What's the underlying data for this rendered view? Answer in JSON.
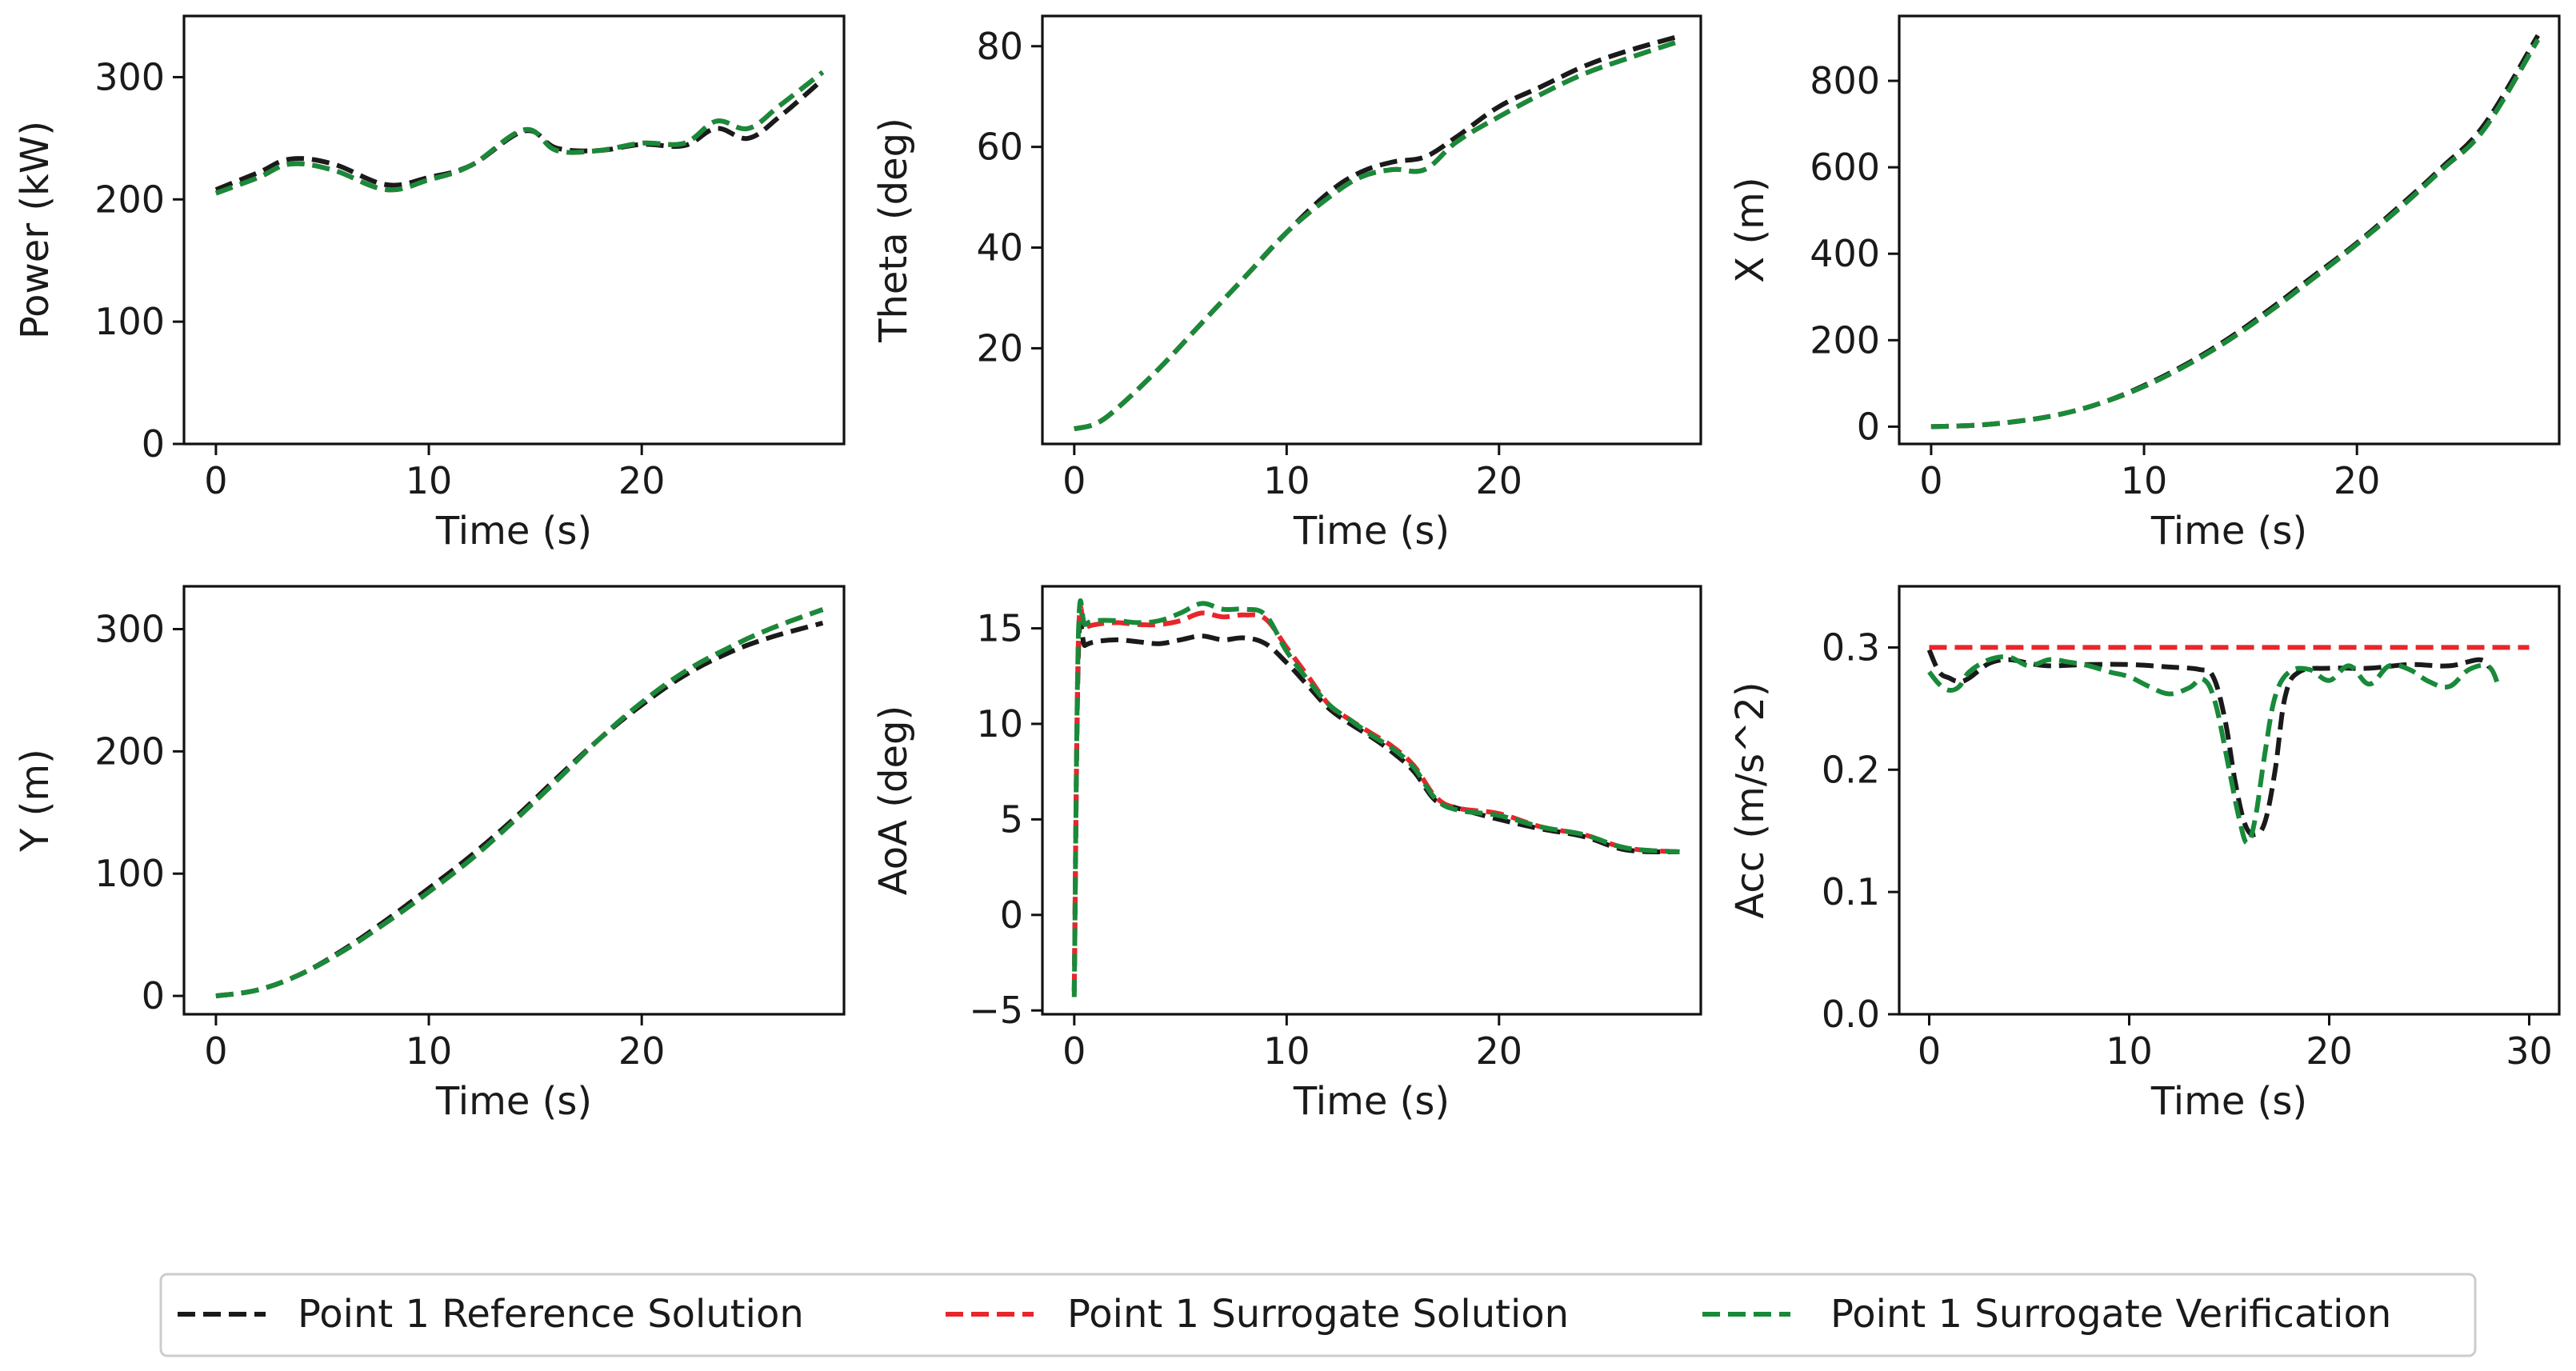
{
  "chart_data": [
    {
      "type": "line",
      "id": "power",
      "xlabel": "Time (s)",
      "ylabel": "Power (kW)",
      "xlim": [
        -1.5,
        29.5
      ],
      "ylim": [
        0,
        350
      ],
      "xticks": [
        0,
        10,
        20
      ],
      "yticks": [
        0,
        100,
        200,
        300
      ],
      "series": [
        {
          "name": "Point 1 Reference Solution",
          "x": [
            0,
            2,
            3.5,
            5.5,
            8,
            10,
            12,
            14.5,
            16,
            18,
            20,
            22,
            23.5,
            25,
            26.5,
            28.5
          ],
          "y": [
            208,
            222,
            233,
            229,
            212,
            218,
            228,
            256,
            242,
            240,
            245,
            244,
            258,
            250,
            268,
            298
          ]
        },
        {
          "name": "Point 1 Surrogate Solution",
          "x": [
            0,
            2,
            3.5,
            5.5,
            8,
            10,
            12,
            14.5,
            16,
            18,
            20,
            22,
            23.5,
            25,
            26.5,
            28.5
          ],
          "y": [
            205,
            218,
            229,
            224,
            208,
            216,
            228,
            257,
            240,
            240,
            246,
            246,
            264,
            258,
            277,
            304
          ]
        },
        {
          "name": "Point 1 Surrogate Verification",
          "x": [
            0,
            2,
            3.5,
            5.5,
            8,
            10,
            12,
            14.5,
            16,
            18,
            20,
            22,
            23.5,
            25,
            26.5,
            28.5
          ],
          "y": [
            205,
            218,
            229,
            224,
            208,
            216,
            228,
            257,
            240,
            240,
            246,
            246,
            264,
            258,
            277,
            304
          ]
        }
      ]
    },
    {
      "type": "line",
      "id": "theta",
      "xlabel": "Time (s)",
      "ylabel": "Theta (deg)",
      "xlim": [
        -1.5,
        29.5
      ],
      "ylim": [
        1,
        86
      ],
      "xticks": [
        0,
        10,
        20
      ],
      "yticks": [
        20,
        40,
        60,
        80
      ],
      "series": [
        {
          "name": "Point 1 Reference Solution",
          "x": [
            0,
            1,
            2,
            4,
            6,
            8,
            10,
            12,
            13.5,
            15,
            16.5,
            18,
            20,
            22,
            24,
            26,
            28.5
          ],
          "y": [
            4,
            5,
            8,
            16,
            25,
            34,
            43,
            51,
            55,
            57,
            58,
            62,
            68,
            72,
            76,
            79,
            82
          ]
        },
        {
          "name": "Point 1 Surrogate Solution",
          "x": [
            0,
            1,
            2,
            4,
            6,
            8,
            10,
            12,
            13.5,
            15,
            16.5,
            18,
            20,
            22,
            24,
            26,
            28.5
          ],
          "y": [
            4,
            5,
            8,
            16,
            25,
            34,
            43,
            50,
            54,
            55.5,
            55.5,
            61,
            66,
            70.5,
            74.5,
            77.5,
            81
          ]
        },
        {
          "name": "Point 1 Surrogate Verification",
          "x": [
            0,
            1,
            2,
            4,
            6,
            8,
            10,
            12,
            13.5,
            15,
            16.5,
            18,
            20,
            22,
            24,
            26,
            28.5
          ],
          "y": [
            4,
            5,
            8,
            16,
            25,
            34,
            43,
            50,
            54,
            55.5,
            55.5,
            61,
            66,
            70.5,
            74.5,
            77.5,
            81
          ]
        }
      ]
    },
    {
      "type": "line",
      "id": "x_position",
      "xlabel": "Time (s)",
      "ylabel": "X (m)",
      "xlim": [
        -1.5,
        29.5
      ],
      "ylim": [
        -40,
        950
      ],
      "xticks": [
        0,
        10,
        20
      ],
      "yticks": [
        0,
        200,
        400,
        600,
        800
      ],
      "series": [
        {
          "name": "Point 1 Reference Solution",
          "x": [
            0,
            2,
            4,
            6,
            8,
            10,
            12,
            14,
            16,
            18,
            20,
            22,
            24,
            26,
            28.5
          ],
          "y": [
            0,
            3,
            12,
            28,
            55,
            95,
            145,
            205,
            275,
            350,
            425,
            510,
            600,
            700,
            905
          ]
        },
        {
          "name": "Point 1 Surrogate Solution",
          "x": [
            0,
            2,
            4,
            6,
            8,
            10,
            12,
            14,
            16,
            18,
            20,
            22,
            24,
            26,
            28.5
          ],
          "y": [
            0,
            3,
            12,
            28,
            55,
            93,
            142,
            201,
            270,
            345,
            422,
            505,
            595,
            690,
            895
          ]
        },
        {
          "name": "Point 1 Surrogate Verification",
          "x": [
            0,
            2,
            4,
            6,
            8,
            10,
            12,
            14,
            16,
            18,
            20,
            22,
            24,
            26,
            28.5
          ],
          "y": [
            0,
            3,
            12,
            28,
            55,
            93,
            142,
            201,
            270,
            345,
            422,
            505,
            595,
            690,
            895
          ]
        }
      ]
    },
    {
      "type": "line",
      "id": "y_position",
      "xlabel": "Time (s)",
      "ylabel": "Y (m)",
      "xlim": [
        -1.5,
        29.5
      ],
      "ylim": [
        -15,
        335
      ],
      "xticks": [
        0,
        10,
        20
      ],
      "yticks": [
        0,
        100,
        200,
        300
      ],
      "series": [
        {
          "name": "Point 1 Reference Solution",
          "x": [
            0,
            2,
            4,
            6,
            8,
            10,
            12,
            14,
            16,
            18,
            20,
            22,
            24,
            26,
            28.5
          ],
          "y": [
            0,
            5,
            18,
            38,
            62,
            88,
            115,
            145,
            178,
            210,
            238,
            262,
            280,
            293,
            305
          ]
        },
        {
          "name": "Point 1 Surrogate Solution",
          "x": [
            0,
            2,
            4,
            6,
            8,
            10,
            12,
            14,
            16,
            18,
            20,
            22,
            24,
            26,
            28.5
          ],
          "y": [
            0,
            5,
            18,
            37,
            60,
            85,
            112,
            143,
            176,
            210,
            240,
            265,
            284,
            300,
            316
          ]
        },
        {
          "name": "Point 1 Surrogate Verification",
          "x": [
            0,
            2,
            4,
            6,
            8,
            10,
            12,
            14,
            16,
            18,
            20,
            22,
            24,
            26,
            28.5
          ],
          "y": [
            0,
            5,
            18,
            37,
            60,
            85,
            112,
            143,
            176,
            210,
            240,
            265,
            284,
            300,
            316
          ]
        }
      ]
    },
    {
      "type": "line",
      "id": "aoa",
      "xlabel": "Time (s)",
      "ylabel": "AoA (deg)",
      "xlim": [
        -1.5,
        29.5
      ],
      "ylim": [
        -5.2,
        17.2
      ],
      "xticks": [
        0,
        10,
        20
      ],
      "yticks": [
        -5,
        0,
        5,
        10,
        15
      ],
      "series": [
        {
          "name": "Point 1 Reference Solution",
          "x": [
            0,
            0.2,
            0.5,
            1,
            2,
            3,
            4,
            5,
            6,
            7,
            8,
            9,
            10,
            11,
            12,
            13,
            14,
            15,
            16,
            17,
            18,
            20,
            22,
            24,
            26,
            28.5
          ],
          "y": [
            -4,
            13.8,
            14.1,
            14.3,
            14.4,
            14.3,
            14.2,
            14.4,
            14.6,
            14.4,
            14.5,
            14.2,
            13.2,
            12,
            10.8,
            10,
            9.3,
            8.5,
            7.5,
            6,
            5.6,
            5.0,
            4.5,
            4.1,
            3.4,
            3.3
          ]
        },
        {
          "name": "Point 1 Surrogate Solution",
          "x": [
            0,
            0.2,
            0.5,
            1,
            2,
            3,
            4,
            5,
            6,
            7,
            8,
            9,
            10,
            11,
            12,
            13,
            14,
            15,
            16,
            17,
            18,
            20,
            22,
            24,
            26,
            28.5
          ],
          "y": [
            -4,
            14.5,
            15.0,
            15.2,
            15.3,
            15.2,
            15.2,
            15.4,
            15.8,
            15.6,
            15.7,
            15.5,
            14,
            12.5,
            11,
            10.2,
            9.5,
            8.8,
            7.8,
            6.2,
            5.6,
            5.3,
            4.6,
            4.2,
            3.5,
            3.3
          ]
        },
        {
          "name": "Point 1 Surrogate Verification",
          "x": [
            0,
            0.2,
            0.5,
            1,
            2,
            3,
            4,
            5,
            6,
            7,
            8,
            9,
            10,
            11,
            12,
            13,
            14,
            15,
            16,
            17,
            18,
            20,
            22,
            24,
            26,
            28.5
          ],
          "y": [
            -4.3,
            14.8,
            15.2,
            15.4,
            15.4,
            15.3,
            15.4,
            15.8,
            16.3,
            16.0,
            16.0,
            15.7,
            13.8,
            12.3,
            11,
            10.2,
            9.4,
            8.7,
            7.7,
            6.1,
            5.5,
            5.2,
            4.6,
            4.2,
            3.5,
            3.3
          ]
        }
      ]
    },
    {
      "type": "line",
      "id": "acc",
      "xlabel": "Time (s)",
      "ylabel": "Acc (m/s^2)",
      "xlim": [
        -1.5,
        31.5
      ],
      "ylim": [
        0,
        0.35
      ],
      "xticks": [
        0,
        10,
        20,
        30
      ],
      "yticks": [
        0.0,
        0.1,
        0.2,
        0.3
      ],
      "yticklabels": [
        "0.0",
        "0.1",
        "0.2",
        "0.3"
      ],
      "series": [
        {
          "name": "Point 1 Reference Solution",
          "x": [
            0,
            0.5,
            1,
            1.5,
            2,
            3,
            4,
            5,
            6,
            8,
            10,
            12,
            13.5,
            14.2,
            14.8,
            15.3,
            15.8,
            16.3,
            16.8,
            17.3,
            17.8,
            18.5,
            20,
            22,
            24,
            26,
            27.5,
            28
          ],
          "y": [
            0.298,
            0.28,
            0.275,
            0.272,
            0.275,
            0.287,
            0.29,
            0.287,
            0.285,
            0.286,
            0.286,
            0.284,
            0.282,
            0.276,
            0.24,
            0.19,
            0.155,
            0.147,
            0.158,
            0.2,
            0.26,
            0.28,
            0.283,
            0.283,
            0.286,
            0.285,
            0.29,
            0.284
          ]
        },
        {
          "name": "Point 1 Surrogate Solution",
          "x": [
            0,
            30
          ],
          "y": [
            0.3,
            0.3
          ]
        },
        {
          "name": "Point 1 Surrogate Verification",
          "x": [
            0,
            0.5,
            1,
            1.5,
            2,
            3,
            4,
            5,
            6,
            7,
            8,
            9,
            10,
            11,
            12,
            13,
            13.7,
            14.3,
            15,
            15.5,
            15.9,
            16.3,
            16.8,
            17.3,
            18,
            19,
            20,
            21,
            22,
            23,
            24,
            25,
            26,
            27,
            28,
            28.5
          ],
          "y": [
            0.28,
            0.27,
            0.265,
            0.268,
            0.28,
            0.29,
            0.292,
            0.285,
            0.29,
            0.288,
            0.285,
            0.28,
            0.276,
            0.268,
            0.262,
            0.267,
            0.274,
            0.255,
            0.2,
            0.16,
            0.14,
            0.16,
            0.215,
            0.26,
            0.28,
            0.282,
            0.273,
            0.285,
            0.27,
            0.285,
            0.282,
            0.272,
            0.268,
            0.282,
            0.284,
            0.266
          ]
        }
      ]
    }
  ],
  "legend": {
    "entries": [
      {
        "label": "Point 1 Reference Solution",
        "color": "#1a1a1a"
      },
      {
        "label": "Point 1 Surrogate Solution",
        "color": "#e8262b"
      },
      {
        "label": "Point 1 Surrogate Verification",
        "color": "#188a3a"
      }
    ]
  },
  "colors": {
    "reference": "#1a1a1a",
    "surrogate": "#e8262b",
    "verification": "#188a3a"
  }
}
